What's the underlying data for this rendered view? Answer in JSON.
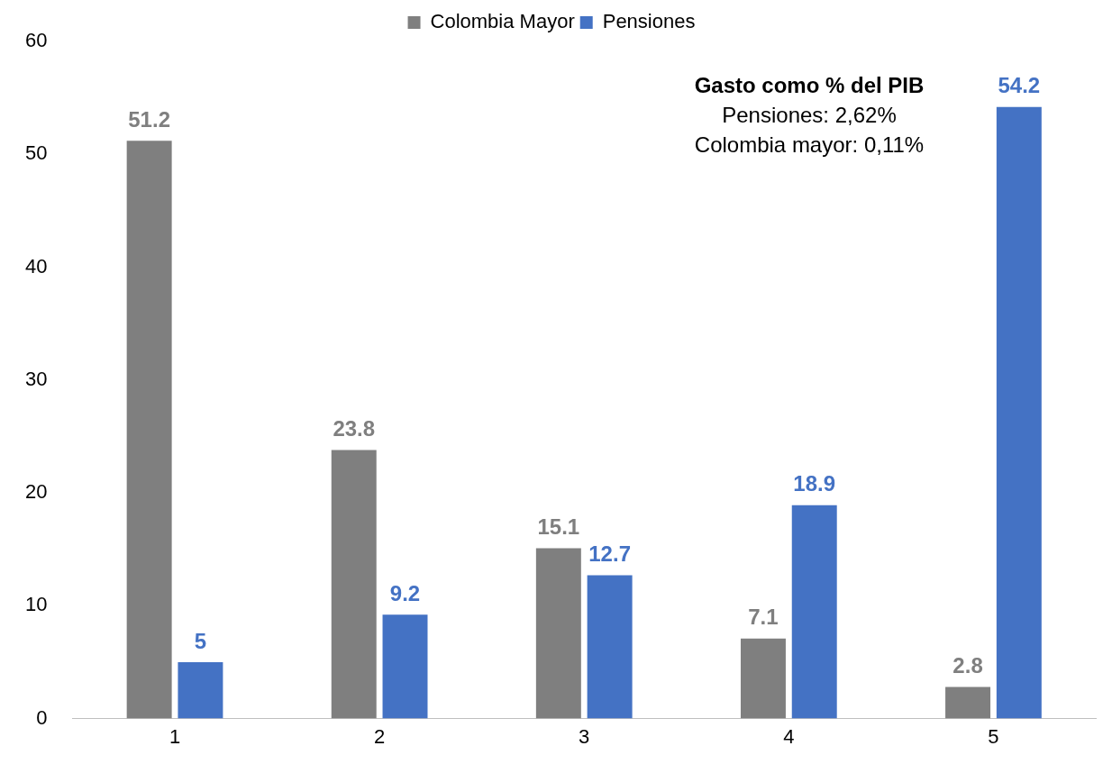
{
  "chart_data": {
    "type": "bar",
    "categories": [
      "1",
      "2",
      "3",
      "4",
      "5"
    ],
    "series": [
      {
        "name": "Colombia Mayor",
        "color": "#7f7f7f",
        "values": [
          51.2,
          23.8,
          15.1,
          7.1,
          2.8
        ]
      },
      {
        "name": "Pensiones",
        "color": "#4472c4",
        "values": [
          5,
          9.2,
          12.7,
          18.9,
          54.2
        ]
      }
    ],
    "ylim": [
      0,
      60
    ],
    "yticks": [
      0,
      10,
      20,
      30,
      40,
      50,
      60
    ],
    "grid": false,
    "legend": "top",
    "data_labels": true,
    "annotations": [
      "Gasto como % del PIB",
      "Pensiones: 2,62%",
      "Colombia mayor: 0,11%"
    ]
  }
}
